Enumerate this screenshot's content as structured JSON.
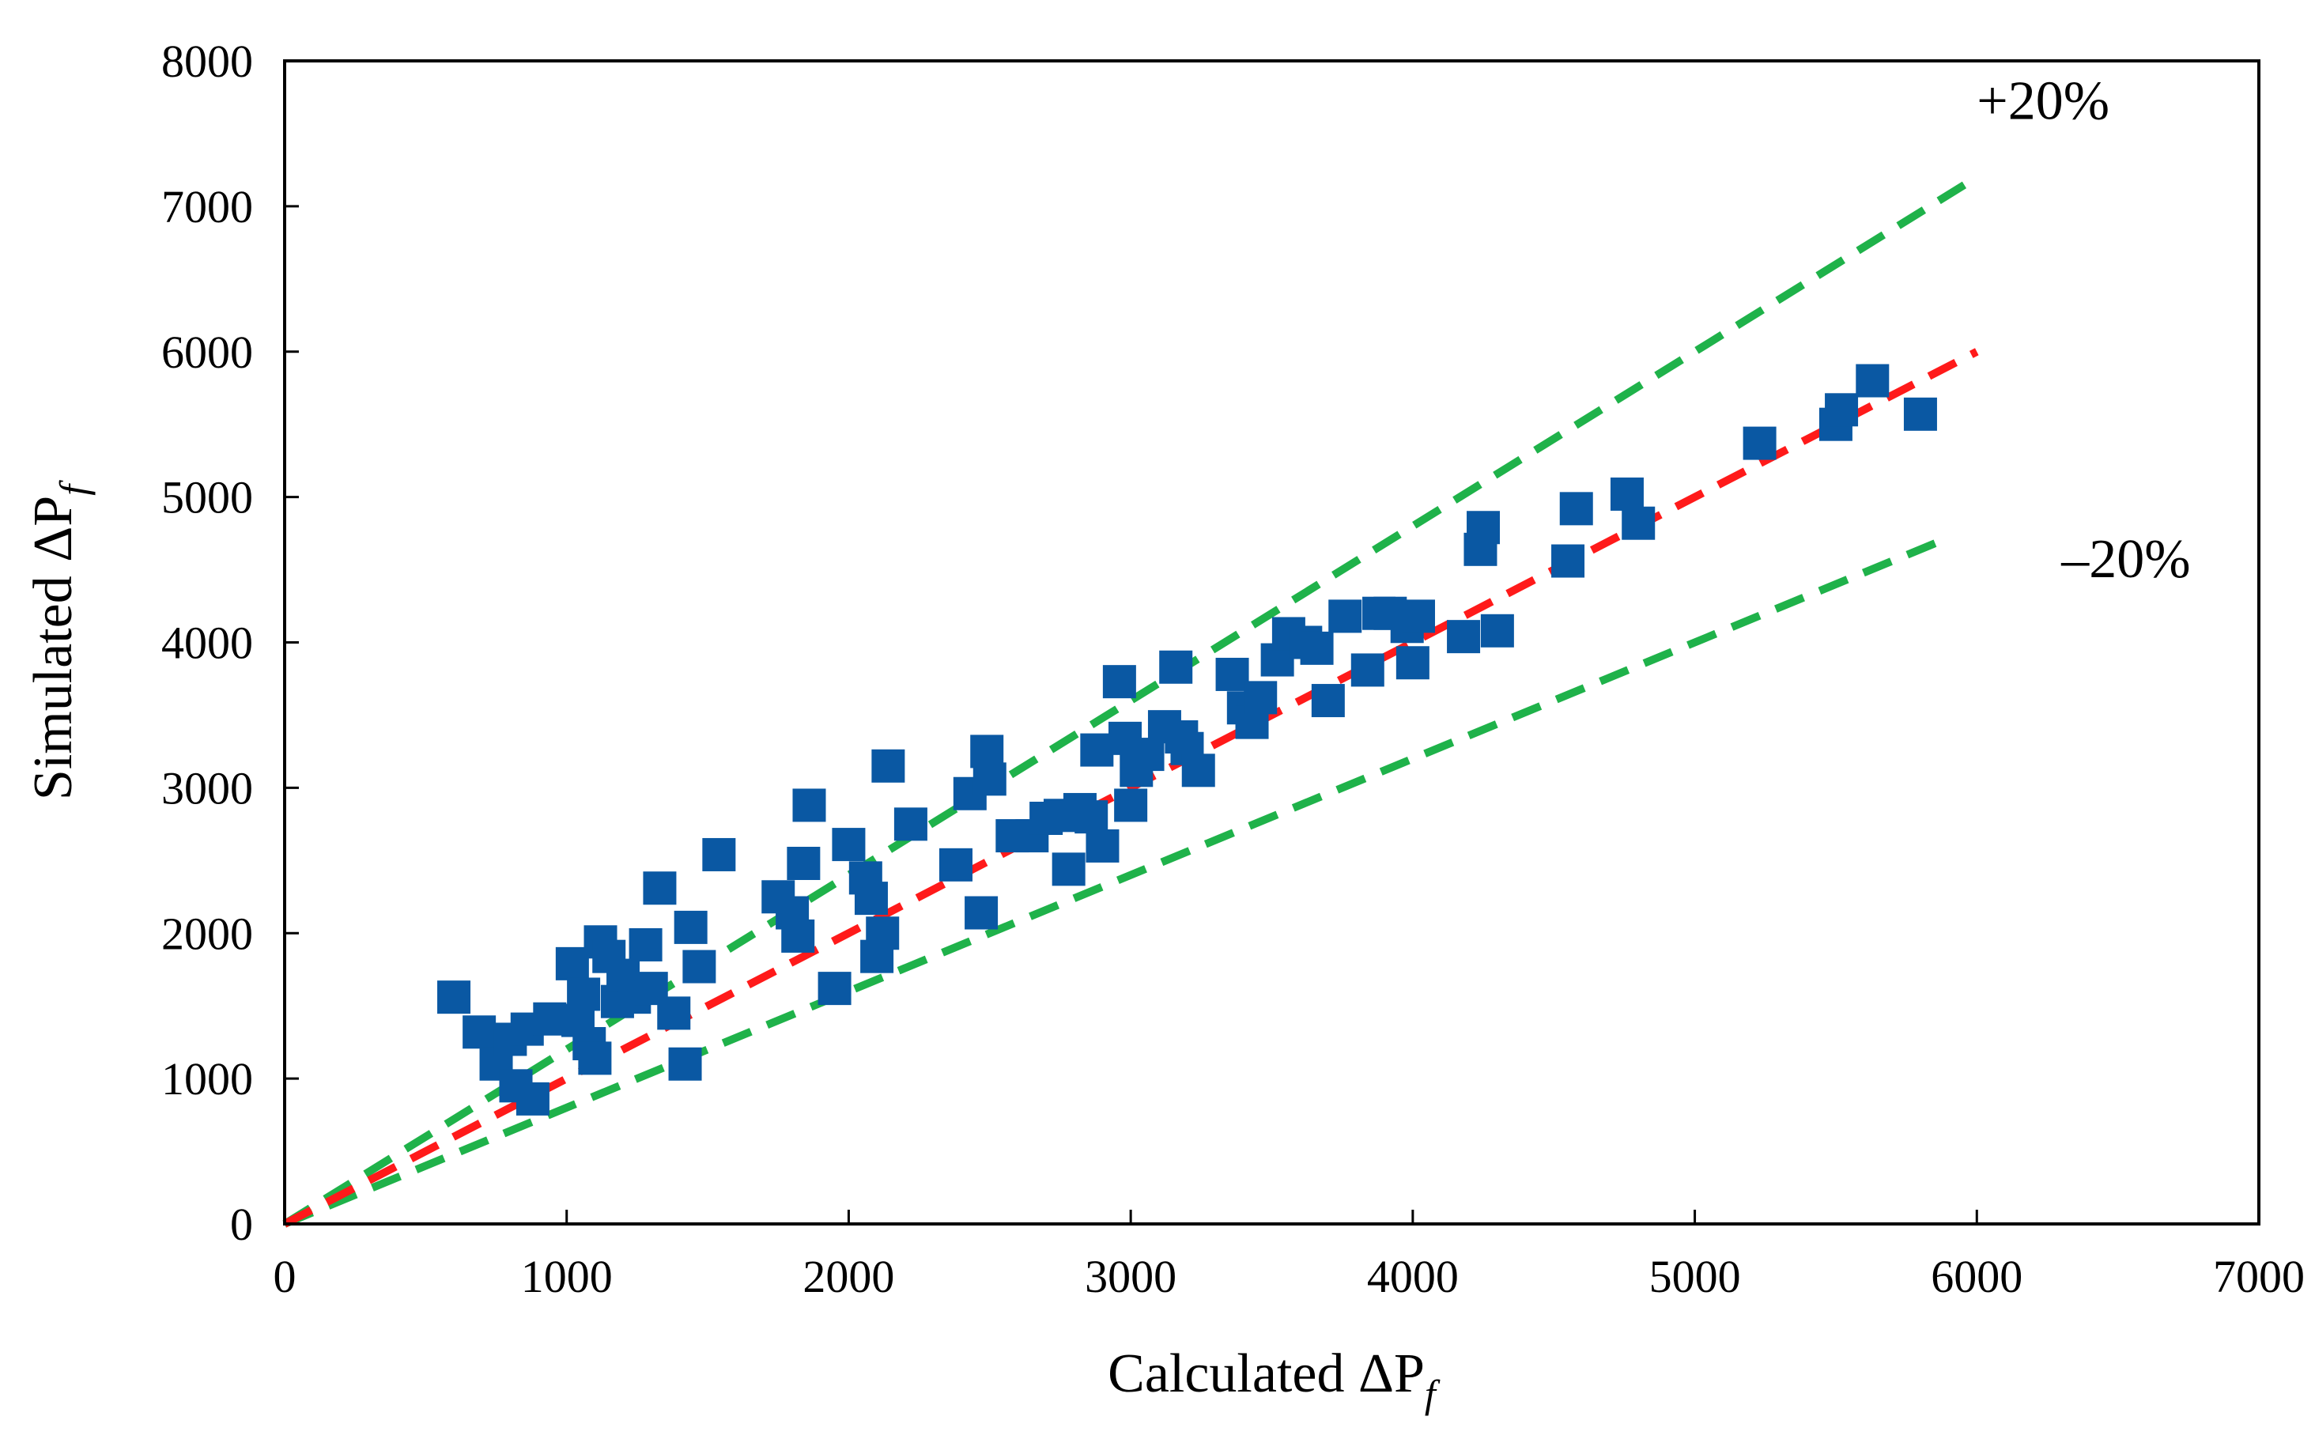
{
  "chart_data": {
    "type": "scatter",
    "title": "",
    "xlabel": "Calculated  ΔP",
    "xlabel_subscript": "f",
    "ylabel": "Simulated ΔP",
    "ylabel_subscript": "f",
    "xlim": [
      0,
      7000
    ],
    "ylim": [
      0,
      8000
    ],
    "x_ticks": [
      0,
      1000,
      2000,
      3000,
      4000,
      5000,
      6000,
      7000
    ],
    "y_ticks": [
      0,
      1000,
      2000,
      3000,
      4000,
      5000,
      6000,
      7000,
      8000
    ],
    "x_tick_labels": [
      "0",
      "1000",
      "2000",
      "3000",
      "4000",
      "5000",
      "6000",
      "7000"
    ],
    "y_tick_labels": [
      "0",
      "1000",
      "2000",
      "3000",
      "4000",
      "5000",
      "6000",
      "7000",
      "8000"
    ],
    "grid": false,
    "colors": {
      "points": "#0a58a3",
      "parity_line": "#ff1a1a",
      "band_lines": "#1fb24a",
      "axis": "#000000"
    },
    "series": [
      {
        "name": "Data",
        "kind": "scatter",
        "marker": "square",
        "x": [
          600,
          690,
          750,
          800,
          820,
          860,
          880,
          940,
          1020,
          1040,
          1060,
          1080,
          1100,
          1120,
          1150,
          1180,
          1200,
          1240,
          1280,
          1300,
          1330,
          1380,
          1420,
          1440,
          1470,
          1540,
          1750,
          1800,
          1820,
          1840,
          1860,
          1950,
          2000,
          2060,
          2080,
          2100,
          2120,
          2140,
          2220,
          2380,
          2430,
          2470,
          2490,
          2500,
          2580,
          2650,
          2700,
          2750,
          2780,
          2820,
          2860,
          2880,
          2900,
          2960,
          2980,
          3000,
          3020,
          3060,
          3120,
          3160,
          3180,
          3200,
          3240,
          3360,
          3400,
          3430,
          3460,
          3520,
          3560,
          3620,
          3660,
          3700,
          3760,
          3840,
          3880,
          3920,
          3980,
          4000,
          4020,
          4180,
          4240,
          4250,
          4300,
          4550,
          4580,
          4760,
          4800,
          5230,
          5500,
          5520,
          5630,
          5800
        ],
        "y": [
          1560,
          1320,
          1100,
          1270,
          950,
          1340,
          860,
          1410,
          1790,
          1400,
          1580,
          1240,
          1140,
          1940,
          1840,
          1530,
          1710,
          1560,
          1920,
          1620,
          2310,
          1450,
          1100,
          2040,
          1770,
          2540,
          2250,
          2140,
          1980,
          2480,
          2880,
          1620,
          2610,
          2380,
          2240,
          1840,
          2000,
          3150,
          2750,
          2470,
          2960,
          2140,
          3250,
          3060,
          2670,
          2670,
          2790,
          2810,
          2440,
          2850,
          2800,
          3260,
          2600,
          3730,
          3340,
          2880,
          3120,
          3230,
          3420,
          3830,
          3350,
          3270,
          3120,
          3780,
          3550,
          3450,
          3620,
          3880,
          4060,
          4000,
          3960,
          3600,
          4180,
          3810,
          4200,
          4200,
          4110,
          3860,
          4180,
          4040,
          4640,
          4790,
          4080,
          4560,
          4920,
          5020,
          4820,
          5370,
          5500,
          5600,
          5800,
          5570
        ]
      },
      {
        "name": "Parity (y = x)",
        "kind": "line",
        "style": "dashed",
        "x": [
          0,
          6000
        ],
        "y": [
          0,
          6000
        ]
      },
      {
        "name": "+20%",
        "kind": "line",
        "style": "dashed",
        "x": [
          0,
          6000
        ],
        "y": [
          0,
          7200
        ]
      },
      {
        "name": "-20%",
        "kind": "line",
        "style": "dashed",
        "x": [
          0,
          5900
        ],
        "y": [
          0,
          4720
        ]
      }
    ],
    "annotations": [
      {
        "text": "+20%",
        "x": 6000,
        "y": 7600
      },
      {
        "text": "–20%",
        "x": 6300,
        "y": 4450
      }
    ]
  }
}
